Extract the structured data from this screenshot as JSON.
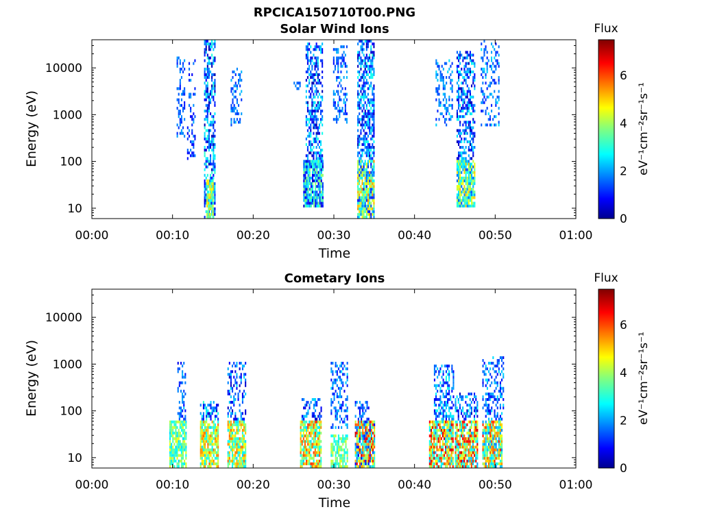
{
  "figure_title": "RPCICA150710T00.PNG",
  "chart_data": [
    {
      "type": "heatmap",
      "title": "Solar Wind Ions",
      "xlabel": "Time",
      "ylabel": "Energy (eV)",
      "x_ticks": [
        "00:00",
        "00:10",
        "00:20",
        "00:30",
        "00:40",
        "00:50",
        "01:00"
      ],
      "xlim_minutes": [
        0,
        60
      ],
      "y_scale": "log",
      "y_ticks": [
        "10",
        "100",
        "1000",
        "10000"
      ],
      "ylim": [
        6,
        40000
      ],
      "colorbar": {
        "title": "Flux",
        "label": "eV⁻¹cm⁻²sr⁻¹s⁻¹",
        "ticks": [
          "0",
          "2",
          "4",
          "6"
        ],
        "range": [
          0,
          7.5
        ],
        "colormap": "jet"
      },
      "columns": [
        {
          "x": [
            10.5,
            11.5
          ],
          "emin": 300,
          "emax": 17000,
          "fmin": 1.0,
          "fmax": 2.2,
          "density": 0.35
        },
        {
          "x": [
            11.8,
            12.8
          ],
          "emin": 100,
          "emax": 14000,
          "fmin": 0.8,
          "fmax": 2.2,
          "density": 0.3
        },
        {
          "x": [
            13.9,
            15.3
          ],
          "emin": 6,
          "emax": 38000,
          "fmin": 0.3,
          "fmax": 3.2,
          "density": 0.6
        },
        {
          "x": [
            14.2,
            15.0
          ],
          "emin": 6,
          "emax": 40,
          "fmin": 2.8,
          "fmax": 5.2,
          "density": 0.9
        },
        {
          "x": [
            17.2,
            18.6
          ],
          "emin": 500,
          "emax": 9000,
          "fmin": 1.2,
          "fmax": 2.4,
          "density": 0.4
        },
        {
          "x": [
            25.0,
            25.8
          ],
          "emin": 3000,
          "emax": 4500,
          "fmin": 1.5,
          "fmax": 2.0,
          "density": 0.5
        },
        {
          "x": [
            26.5,
            28.6
          ],
          "emin": 100,
          "emax": 33000,
          "fmin": 0.3,
          "fmax": 3.0,
          "density": 0.55
        },
        {
          "x": [
            26.2,
            28.6
          ],
          "emin": 10,
          "emax": 100,
          "fmin": 0.5,
          "fmax": 4.0,
          "density": 0.9
        },
        {
          "x": [
            29.9,
            31.6
          ],
          "emin": 600,
          "emax": 30000,
          "fmin": 1.0,
          "fmax": 2.4,
          "density": 0.35
        },
        {
          "x": [
            32.9,
            34.9
          ],
          "emin": 100,
          "emax": 38000,
          "fmin": 0.3,
          "fmax": 3.0,
          "density": 0.6
        },
        {
          "x": [
            32.9,
            34.9
          ],
          "emin": 6,
          "emax": 100,
          "fmin": 1.0,
          "fmax": 5.6,
          "density": 0.9
        },
        {
          "x": [
            42.6,
            44.6
          ],
          "emin": 500,
          "emax": 14000,
          "fmin": 1.2,
          "fmax": 2.6,
          "density": 0.35
        },
        {
          "x": [
            45.2,
            47.4
          ],
          "emin": 100,
          "emax": 22000,
          "fmin": 0.3,
          "fmax": 3.0,
          "density": 0.55
        },
        {
          "x": [
            45.2,
            47.4
          ],
          "emin": 10,
          "emax": 100,
          "fmin": 1.5,
          "fmax": 5.2,
          "density": 0.85
        },
        {
          "x": [
            48.2,
            50.5
          ],
          "emin": 500,
          "emax": 36000,
          "fmin": 1.0,
          "fmax": 2.6,
          "density": 0.3
        }
      ]
    },
    {
      "type": "heatmap",
      "title": "Cometary Ions",
      "xlabel": "Time",
      "ylabel": "Energy (eV)",
      "x_ticks": [
        "00:00",
        "00:10",
        "00:20",
        "00:30",
        "00:40",
        "00:50",
        "01:00"
      ],
      "xlim_minutes": [
        0,
        60
      ],
      "y_scale": "log",
      "y_ticks": [
        "10",
        "100",
        "1000",
        "10000"
      ],
      "ylim": [
        6,
        40000
      ],
      "colorbar": {
        "title": "Flux",
        "label": "eV⁻¹cm⁻²sr⁻¹s⁻¹",
        "ticks": [
          "0",
          "2",
          "4",
          "6"
        ],
        "range": [
          0,
          7.5
        ],
        "colormap": "jet"
      },
      "columns": [
        {
          "x": [
            9.6,
            11.6
          ],
          "emin": 6,
          "emax": 60,
          "fmin": 2.5,
          "fmax": 4.6,
          "density": 0.8
        },
        {
          "x": [
            10.6,
            11.6
          ],
          "emin": 60,
          "emax": 1000,
          "fmin": 0.8,
          "fmax": 2.4,
          "density": 0.35
        },
        {
          "x": [
            13.4,
            15.6
          ],
          "emin": 6,
          "emax": 60,
          "fmin": 2.5,
          "fmax": 5.8,
          "density": 0.85
        },
        {
          "x": [
            13.4,
            15.6
          ],
          "emin": 60,
          "emax": 160,
          "fmin": 0.4,
          "fmax": 3.2,
          "density": 0.5
        },
        {
          "x": [
            16.8,
            19.0
          ],
          "emin": 6,
          "emax": 60,
          "fmin": 2.5,
          "fmax": 5.8,
          "density": 0.8
        },
        {
          "x": [
            16.8,
            19.0
          ],
          "emin": 60,
          "emax": 1100,
          "fmin": 0.4,
          "fmax": 2.6,
          "density": 0.35
        },
        {
          "x": [
            25.8,
            28.4
          ],
          "emin": 6,
          "emax": 60,
          "fmin": 2.5,
          "fmax": 6.2,
          "density": 0.85
        },
        {
          "x": [
            26.0,
            28.4
          ],
          "emin": 60,
          "emax": 170,
          "fmin": 0.4,
          "fmax": 2.6,
          "density": 0.4
        },
        {
          "x": [
            29.6,
            31.6
          ],
          "emin": 6,
          "emax": 30,
          "fmin": 2.6,
          "fmax": 4.5,
          "density": 0.75
        },
        {
          "x": [
            29.6,
            31.6
          ],
          "emin": 40,
          "emax": 1000,
          "fmin": 0.8,
          "fmax": 2.6,
          "density": 0.4
        },
        {
          "x": [
            32.6,
            35.0
          ],
          "emin": 6,
          "emax": 60,
          "fmin": 0.8,
          "fmax": 7.0,
          "density": 0.9
        },
        {
          "x": [
            32.6,
            34.4
          ],
          "emin": 60,
          "emax": 150,
          "fmin": 0.8,
          "fmax": 2.4,
          "density": 0.4
        },
        {
          "x": [
            41.8,
            44.8
          ],
          "emin": 6,
          "emax": 60,
          "fmin": 2.0,
          "fmax": 7.0,
          "density": 0.85
        },
        {
          "x": [
            42.4,
            44.8
          ],
          "emin": 60,
          "emax": 900,
          "fmin": 0.8,
          "fmax": 3.0,
          "density": 0.45
        },
        {
          "x": [
            45.0,
            47.8
          ],
          "emin": 6,
          "emax": 60,
          "fmin": 2.0,
          "fmax": 7.0,
          "density": 0.85
        },
        {
          "x": [
            45.0,
            47.8
          ],
          "emin": 60,
          "emax": 230,
          "fmin": 0.4,
          "fmax": 3.0,
          "density": 0.45
        },
        {
          "x": [
            48.4,
            50.8
          ],
          "emin": 6,
          "emax": 60,
          "fmin": 1.8,
          "fmax": 6.5,
          "density": 0.8
        },
        {
          "x": [
            48.4,
            51.0
          ],
          "emin": 60,
          "emax": 1300,
          "fmin": 0.8,
          "fmax": 2.6,
          "density": 0.4
        }
      ]
    }
  ]
}
